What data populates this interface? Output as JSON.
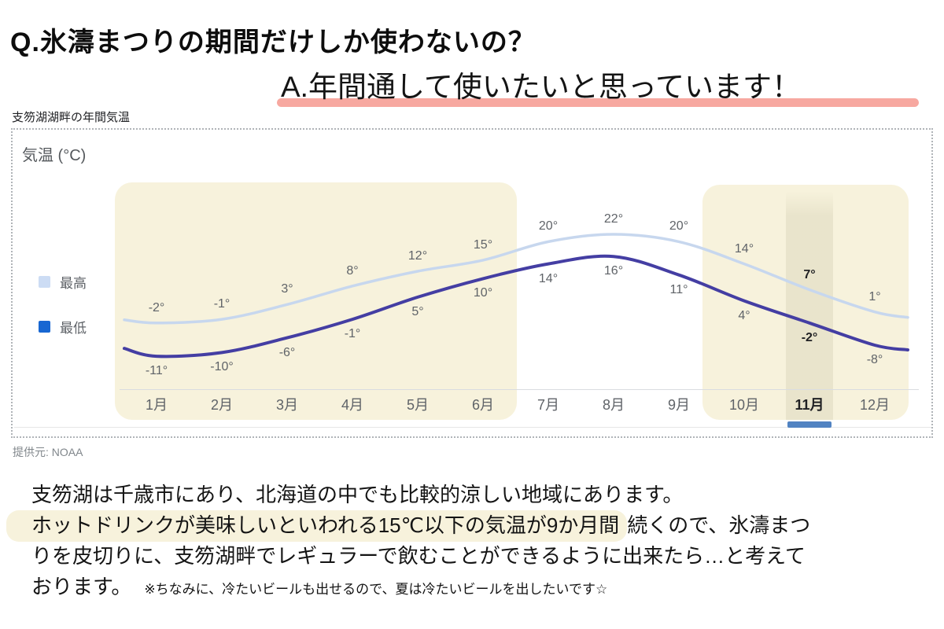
{
  "page": {
    "question": "Q.氷濤まつりの期間だけしか使わないの？",
    "answer": "A.年間通して使いたいと思っています！",
    "chart_caption": "支笏湖湖畔の年間気温",
    "source": "提供元: NOAA"
  },
  "chart_data": {
    "type": "line",
    "title": "気温 (°C)",
    "categories": [
      "1月",
      "2月",
      "3月",
      "4月",
      "5月",
      "6月",
      "7月",
      "8月",
      "9月",
      "10月",
      "11月",
      "12月"
    ],
    "series": [
      {
        "name": "最高",
        "values": [
          -2,
          -1,
          3,
          8,
          12,
          15,
          20,
          22,
          20,
          14,
          7,
          1
        ],
        "color": "#c7d7ee"
      },
      {
        "name": "最低",
        "values": [
          -11,
          -10,
          -6,
          -1,
          5,
          10,
          14,
          16,
          11,
          4,
          -2,
          -8
        ],
        "color": "#443ea3"
      }
    ],
    "unit": "°",
    "ylim": [
      -13,
      24
    ],
    "grid": false,
    "legend": [
      {
        "label": "最高",
        "color": "#ccdcf4"
      },
      {
        "label": "最低",
        "color": "#1867d2"
      }
    ],
    "legend_position": "left",
    "selected_month": "11月",
    "highlight_ranges": [
      {
        "from": "1月",
        "to": "6月"
      },
      {
        "from": "10月",
        "to": "12月"
      }
    ],
    "selection_accent_color": "#5183c2",
    "highlight_color": "#f7f2dc"
  },
  "body": {
    "lines": [
      {
        "segments": [
          {
            "text": "支笏湖は千歳市にあり、北海道の中でも比較的涼しい地域にあります。"
          }
        ]
      },
      {
        "segments": [
          {
            "text": "ホットドリンクが美味しいといわれる15℃以下の気温が9か月間",
            "highlight": true
          },
          {
            "text": "続くので、氷濤まつ"
          }
        ]
      },
      {
        "segments": [
          {
            "text": "りを皮切りに、支笏湖畔でレギュラーで飲むことができるように出来たら…と考えて"
          }
        ]
      },
      {
        "segments": [
          {
            "text": "おります。"
          },
          {
            "text": "※ちなみに、冷たいビールも出せるので、夏は冷たいビールを出したいです☆",
            "small": true
          }
        ]
      }
    ]
  }
}
